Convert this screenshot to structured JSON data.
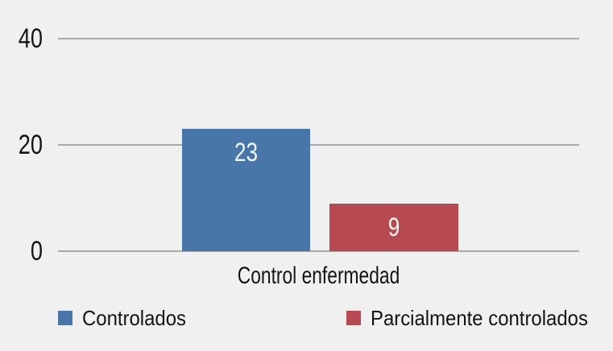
{
  "chart_data": {
    "type": "bar",
    "title": "",
    "categories": [
      "Control enfermedad"
    ],
    "series": [
      {
        "name": "Controlados",
        "values": [
          23
        ],
        "color": "#4876a8"
      },
      {
        "name": "Parcialmente controlados",
        "values": [
          9
        ],
        "color": "#b64a50"
      }
    ],
    "xlabel": "Control enfermedad",
    "ylabel": "",
    "y_ticks": [
      0,
      20,
      40
    ],
    "ylim": [
      0,
      40
    ],
    "grid": true,
    "legend_position": "bottom",
    "value_labels": [
      23,
      9
    ]
  },
  "colors": {
    "background": "#f0f0f0",
    "gridline": "#a9a9a9",
    "text": "#141414",
    "value_label_text": "#f2f5f5",
    "blue_series": "#4876a8",
    "red_series": "#b64a50"
  },
  "legend": {
    "items": [
      {
        "label": "Controlados"
      },
      {
        "label": "Parcialmente controlados"
      }
    ]
  }
}
